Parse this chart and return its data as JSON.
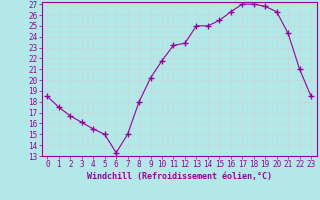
{
  "x": [
    0,
    1,
    2,
    3,
    4,
    5,
    6,
    7,
    8,
    9,
    10,
    11,
    12,
    13,
    14,
    15,
    16,
    17,
    18,
    19,
    20,
    21,
    22,
    23
  ],
  "y": [
    18.5,
    17.5,
    16.7,
    16.1,
    15.5,
    15.0,
    13.3,
    15.0,
    18.0,
    20.2,
    21.8,
    23.2,
    23.4,
    25.0,
    25.0,
    25.5,
    26.3,
    27.0,
    27.0,
    26.8,
    26.3,
    24.3,
    21.0,
    18.5
  ],
  "line_color": "#990099",
  "marker": "+",
  "marker_size": 4,
  "bg_color": "#b3e8e8",
  "grid_color": "#c8d8d8",
  "xlabel": "Windchill (Refroidissement éolien,°C)",
  "xlabel_color": "#990099",
  "tick_color": "#990099",
  "spine_color": "#990099",
  "ylim": [
    13,
    27
  ],
  "xlim": [
    -0.5,
    23.5
  ],
  "yticks": [
    13,
    14,
    15,
    16,
    17,
    18,
    19,
    20,
    21,
    22,
    23,
    24,
    25,
    26,
    27
  ],
  "xticks": [
    0,
    1,
    2,
    3,
    4,
    5,
    6,
    7,
    8,
    9,
    10,
    11,
    12,
    13,
    14,
    15,
    16,
    17,
    18,
    19,
    20,
    21,
    22,
    23
  ],
  "tick_fontsize": 5.5,
  "xlabel_fontsize": 6.0
}
